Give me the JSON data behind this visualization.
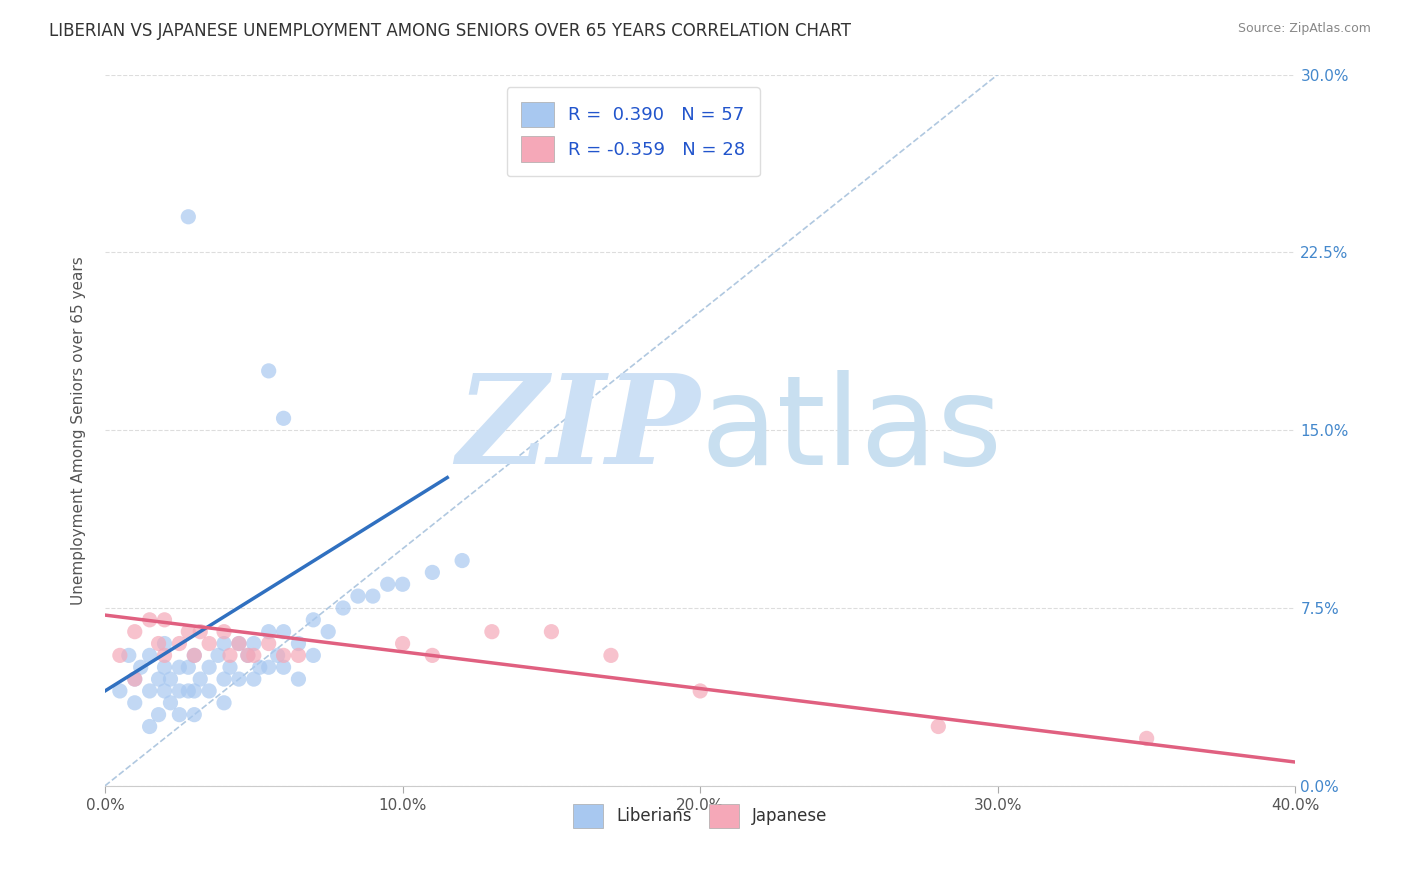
{
  "title": "LIBERIAN VS JAPANESE UNEMPLOYMENT AMONG SENIORS OVER 65 YEARS CORRELATION CHART",
  "source": "Source: ZipAtlas.com",
  "ylabel": "Unemployment Among Seniors over 65 years",
  "xlim": [
    0.0,
    0.4
  ],
  "ylim": [
    0.0,
    0.3
  ],
  "xticks": [
    0.0,
    0.1,
    0.2,
    0.3,
    0.4
  ],
  "xticklabels": [
    "0.0%",
    "10.0%",
    "20.0%",
    "30.0%",
    "40.0%"
  ],
  "yticks": [
    0.0,
    0.075,
    0.15,
    0.225,
    0.3
  ],
  "yticklabels_right": [
    "0.0%",
    "7.5%",
    "15.0%",
    "22.5%",
    "30.0%"
  ],
  "liberian_color": "#a8c8f0",
  "japanese_color": "#f5a8b8",
  "liberian_R": 0.39,
  "liberian_N": 57,
  "japanese_R": -0.359,
  "japanese_N": 28,
  "liberian_line_color": "#3070c0",
  "japanese_line_color": "#e06080",
  "legend_R_color": "#2255cc",
  "watermark_zip": "ZIP",
  "watermark_atlas": "atlas",
  "watermark_color": "#cce0f5",
  "grid_color": "#dddddd",
  "liberian_scatter": [
    [
      0.005,
      0.04
    ],
    [
      0.008,
      0.055
    ],
    [
      0.01,
      0.045
    ],
    [
      0.01,
      0.035
    ],
    [
      0.012,
      0.05
    ],
    [
      0.015,
      0.04
    ],
    [
      0.015,
      0.055
    ],
    [
      0.015,
      0.025
    ],
    [
      0.018,
      0.045
    ],
    [
      0.018,
      0.03
    ],
    [
      0.02,
      0.05
    ],
    [
      0.02,
      0.04
    ],
    [
      0.02,
      0.06
    ],
    [
      0.022,
      0.045
    ],
    [
      0.022,
      0.035
    ],
    [
      0.025,
      0.05
    ],
    [
      0.025,
      0.04
    ],
    [
      0.025,
      0.03
    ],
    [
      0.028,
      0.05
    ],
    [
      0.028,
      0.04
    ],
    [
      0.03,
      0.055
    ],
    [
      0.03,
      0.04
    ],
    [
      0.03,
      0.03
    ],
    [
      0.032,
      0.045
    ],
    [
      0.035,
      0.05
    ],
    [
      0.035,
      0.04
    ],
    [
      0.038,
      0.055
    ],
    [
      0.04,
      0.06
    ],
    [
      0.04,
      0.045
    ],
    [
      0.04,
      0.035
    ],
    [
      0.042,
      0.05
    ],
    [
      0.045,
      0.06
    ],
    [
      0.045,
      0.045
    ],
    [
      0.048,
      0.055
    ],
    [
      0.05,
      0.06
    ],
    [
      0.05,
      0.045
    ],
    [
      0.052,
      0.05
    ],
    [
      0.055,
      0.065
    ],
    [
      0.055,
      0.05
    ],
    [
      0.058,
      0.055
    ],
    [
      0.06,
      0.065
    ],
    [
      0.06,
      0.05
    ],
    [
      0.065,
      0.06
    ],
    [
      0.065,
      0.045
    ],
    [
      0.07,
      0.07
    ],
    [
      0.07,
      0.055
    ],
    [
      0.075,
      0.065
    ],
    [
      0.08,
      0.075
    ],
    [
      0.085,
      0.08
    ],
    [
      0.09,
      0.08
    ],
    [
      0.095,
      0.085
    ],
    [
      0.1,
      0.085
    ],
    [
      0.11,
      0.09
    ],
    [
      0.12,
      0.095
    ],
    [
      0.055,
      0.175
    ],
    [
      0.06,
      0.155
    ],
    [
      0.028,
      0.24
    ]
  ],
  "japanese_scatter": [
    [
      0.005,
      0.055
    ],
    [
      0.01,
      0.065
    ],
    [
      0.01,
      0.045
    ],
    [
      0.015,
      0.07
    ],
    [
      0.018,
      0.06
    ],
    [
      0.02,
      0.07
    ],
    [
      0.02,
      0.055
    ],
    [
      0.025,
      0.06
    ],
    [
      0.028,
      0.065
    ],
    [
      0.03,
      0.055
    ],
    [
      0.032,
      0.065
    ],
    [
      0.035,
      0.06
    ],
    [
      0.04,
      0.065
    ],
    [
      0.042,
      0.055
    ],
    [
      0.045,
      0.06
    ],
    [
      0.048,
      0.055
    ],
    [
      0.05,
      0.055
    ],
    [
      0.055,
      0.06
    ],
    [
      0.06,
      0.055
    ],
    [
      0.065,
      0.055
    ],
    [
      0.1,
      0.06
    ],
    [
      0.11,
      0.055
    ],
    [
      0.13,
      0.065
    ],
    [
      0.15,
      0.065
    ],
    [
      0.17,
      0.055
    ],
    [
      0.2,
      0.04
    ],
    [
      0.28,
      0.025
    ],
    [
      0.35,
      0.02
    ]
  ],
  "liberian_line_x": [
    0.0,
    0.115
  ],
  "liberian_line_y_start": 0.04,
  "liberian_line_y_end": 0.13,
  "japanese_line_x": [
    0.0,
    0.4
  ],
  "japanese_line_y_start": 0.072,
  "japanese_line_y_end": 0.01
}
